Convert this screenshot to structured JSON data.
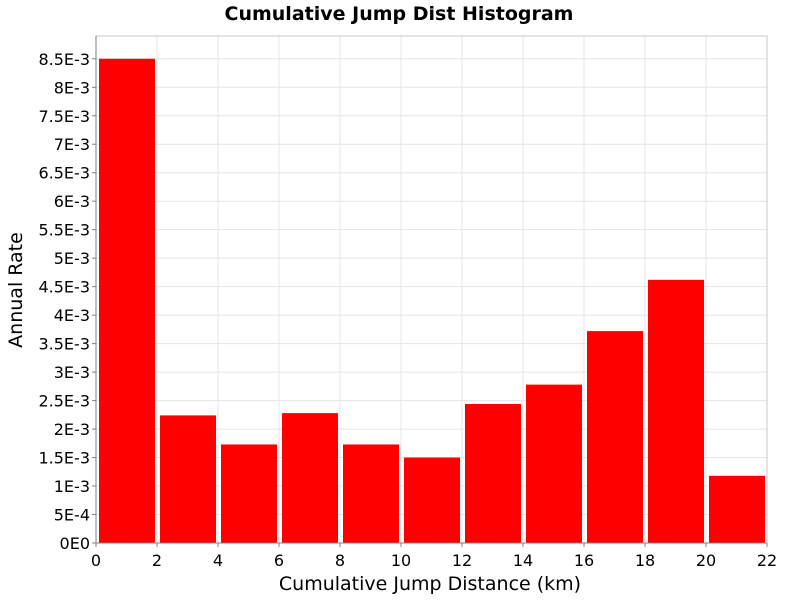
{
  "chart_data": {
    "type": "bar",
    "title": "Cumulative Jump Dist Histogram",
    "xlabel": "Cumulative Jump Distance (km)",
    "ylabel": "Annual Rate",
    "xlim": [
      0,
      22
    ],
    "ylim": [
      0,
      0.0089
    ],
    "grid": true,
    "bar_color": "#ff0000",
    "bin_width": 2,
    "bins": [
      {
        "x_start": 0,
        "x_end": 2,
        "value": 0.0085
      },
      {
        "x_start": 2,
        "x_end": 4,
        "value": 0.00224
      },
      {
        "x_start": 4,
        "x_end": 6,
        "value": 0.00173
      },
      {
        "x_start": 6,
        "x_end": 8,
        "value": 0.00228
      },
      {
        "x_start": 8,
        "x_end": 10,
        "value": 0.00173
      },
      {
        "x_start": 10,
        "x_end": 12,
        "value": 0.0015
      },
      {
        "x_start": 12,
        "x_end": 14,
        "value": 0.00244
      },
      {
        "x_start": 14,
        "x_end": 16,
        "value": 0.00278
      },
      {
        "x_start": 16,
        "x_end": 18,
        "value": 0.00372
      },
      {
        "x_start": 18,
        "x_end": 20,
        "value": 0.00462
      },
      {
        "x_start": 20,
        "x_end": 22,
        "value": 0.00118
      }
    ],
    "x_ticks": [
      {
        "value": 0,
        "label": "0"
      },
      {
        "value": 2,
        "label": "2"
      },
      {
        "value": 4,
        "label": "4"
      },
      {
        "value": 6,
        "label": "6"
      },
      {
        "value": 8,
        "label": "8"
      },
      {
        "value": 10,
        "label": "10"
      },
      {
        "value": 12,
        "label": "12"
      },
      {
        "value": 14,
        "label": "14"
      },
      {
        "value": 16,
        "label": "16"
      },
      {
        "value": 18,
        "label": "18"
      },
      {
        "value": 20,
        "label": "20"
      },
      {
        "value": 22,
        "label": "22"
      }
    ],
    "y_ticks": [
      {
        "value": 0,
        "label": "0E0"
      },
      {
        "value": 0.0005,
        "label": "5E-4"
      },
      {
        "value": 0.001,
        "label": "1E-3"
      },
      {
        "value": 0.0015,
        "label": "1.5E-3"
      },
      {
        "value": 0.002,
        "label": "2E-3"
      },
      {
        "value": 0.0025,
        "label": "2.5E-3"
      },
      {
        "value": 0.003,
        "label": "3E-3"
      },
      {
        "value": 0.0035,
        "label": "3.5E-3"
      },
      {
        "value": 0.004,
        "label": "4E-3"
      },
      {
        "value": 0.0045,
        "label": "4.5E-3"
      },
      {
        "value": 0.005,
        "label": "5E-3"
      },
      {
        "value": 0.0055,
        "label": "5.5E-3"
      },
      {
        "value": 0.006,
        "label": "6E-3"
      },
      {
        "value": 0.0065,
        "label": "6.5E-3"
      },
      {
        "value": 0.007,
        "label": "7E-3"
      },
      {
        "value": 0.0075,
        "label": "7.5E-3"
      },
      {
        "value": 0.008,
        "label": "8E-3"
      },
      {
        "value": 0.0085,
        "label": "8.5E-3"
      }
    ]
  }
}
